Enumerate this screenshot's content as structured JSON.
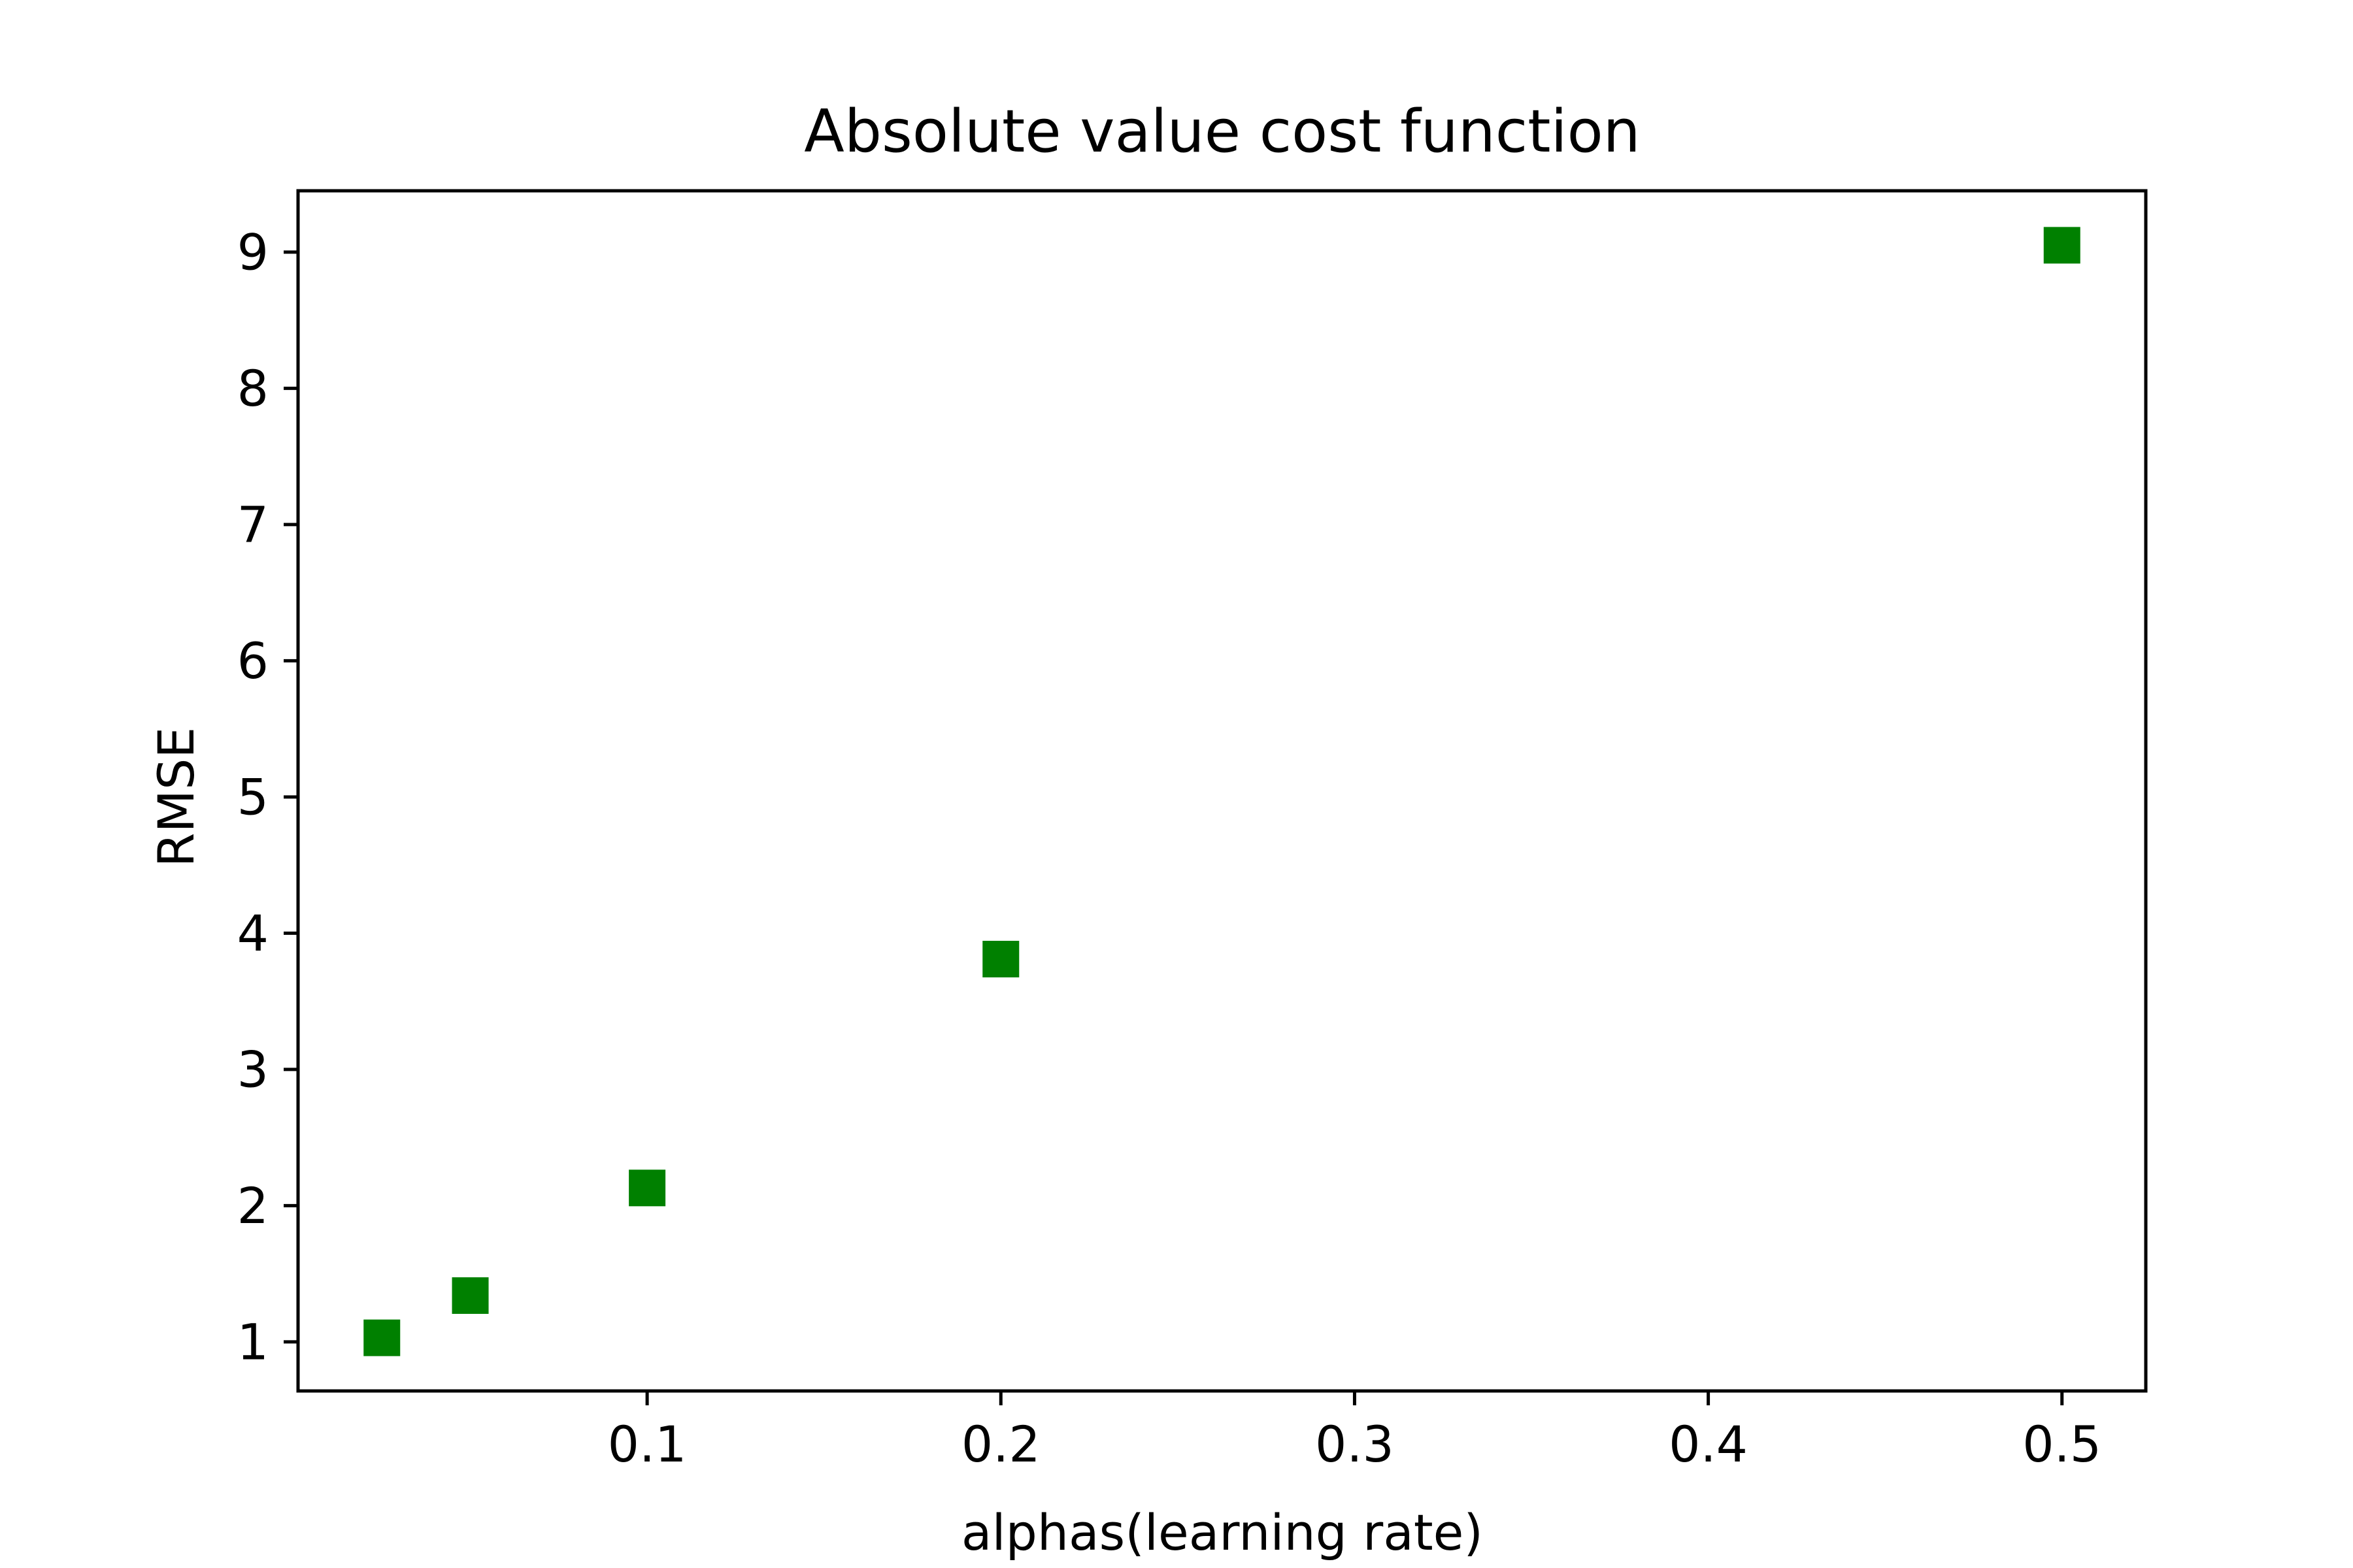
{
  "chart_data": {
    "type": "scatter",
    "title": "Absolute value cost function",
    "xlabel": "alphas(learning rate)",
    "ylabel": "RMSE",
    "marker": "square",
    "marker_color": "#008000",
    "grid": false,
    "legend": "none",
    "xlim": [
      0.0013,
      0.5237
    ],
    "ylim": [
      0.64,
      9.45
    ],
    "xticks": [
      0.1,
      0.2,
      0.3,
      0.4,
      0.5
    ],
    "xtick_labels": [
      "0.1",
      "0.2",
      "0.3",
      "0.4",
      "0.5"
    ],
    "yticks": [
      1,
      2,
      3,
      4,
      5,
      6,
      7,
      8,
      9
    ],
    "ytick_labels": [
      "1",
      "2",
      "3",
      "4",
      "5",
      "6",
      "7",
      "8",
      "9"
    ],
    "points": [
      {
        "x": 0.025,
        "y": 1.03
      },
      {
        "x": 0.05,
        "y": 1.34
      },
      {
        "x": 0.1,
        "y": 2.13
      },
      {
        "x": 0.2,
        "y": 3.81
      },
      {
        "x": 0.5,
        "y": 9.05
      }
    ]
  }
}
